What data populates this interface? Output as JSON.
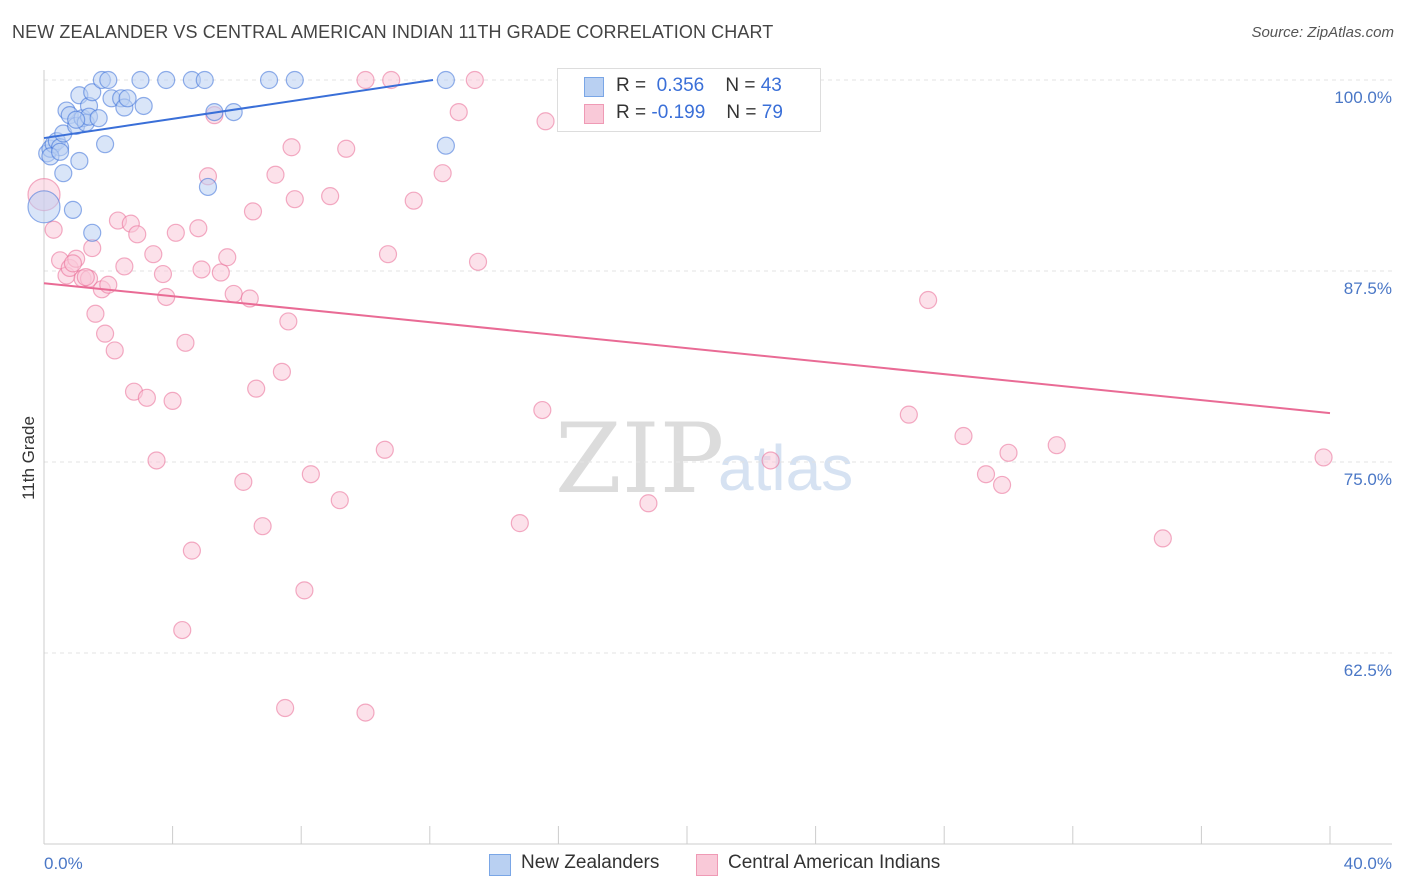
{
  "title": "NEW ZEALANDER VS CENTRAL AMERICAN INDIAN 11TH GRADE CORRELATION CHART",
  "source": "Source: ZipAtlas.com",
  "watermark": {
    "zip": "ZIP",
    "atlas": "atlas"
  },
  "legend": {
    "r_label": "R =",
    "n_label": "N =",
    "rows": [
      {
        "r": "0.356",
        "n": "43",
        "color": "#7aa6e6",
        "fill": "#b9d0f2"
      },
      {
        "r": "-0.199",
        "n": "79",
        "color": "#ef9ab5",
        "fill": "#f9c9d8"
      }
    ]
  },
  "bottom_legend": [
    "New Zealanders",
    "Central American Indians"
  ],
  "chart_data": {
    "type": "scatter",
    "title": "NEW ZEALANDER VS CENTRAL AMERICAN INDIAN 11TH GRADE CORRELATION CHART",
    "xlabel": "",
    "ylabel": "11th Grade",
    "xlim": [
      0,
      40
    ],
    "ylim": [
      50,
      100
    ],
    "x_tick_labels": [
      "0.0%",
      "40.0%"
    ],
    "y_ticks": [
      100,
      87.5,
      75,
      62.5
    ],
    "y_tick_labels": [
      "100.0%",
      "87.5%",
      "75.0%",
      "62.5%"
    ],
    "grid": true,
    "legend_position": "top-center",
    "series": [
      {
        "name": "New Zealanders",
        "color": "#3a6fd8",
        "marker_fill": "#b9d0f2",
        "trend": {
          "x": [
            0.0,
            12.1
          ],
          "y": [
            96.2,
            100.0
          ]
        },
        "points": [
          [
            0.0,
            91.7
          ],
          [
            0.1,
            95.2
          ],
          [
            0.2,
            95.5
          ],
          [
            0.3,
            95.8
          ],
          [
            0.4,
            96.0
          ],
          [
            0.5,
            95.6
          ],
          [
            0.6,
            96.5
          ],
          [
            0.6,
            93.9
          ],
          [
            0.7,
            98.0
          ],
          [
            0.8,
            97.7
          ],
          [
            0.9,
            91.5
          ],
          [
            1.0,
            97.0
          ],
          [
            1.1,
            94.7
          ],
          [
            1.1,
            99.0
          ],
          [
            1.2,
            97.5
          ],
          [
            1.3,
            97.2
          ],
          [
            1.4,
            98.3
          ],
          [
            1.4,
            97.6
          ],
          [
            1.5,
            90.0
          ],
          [
            1.5,
            99.2
          ],
          [
            1.7,
            97.5
          ],
          [
            1.9,
            95.8
          ],
          [
            1.8,
            100.0
          ],
          [
            2.0,
            100.0
          ],
          [
            2.1,
            98.8
          ],
          [
            2.4,
            98.8
          ],
          [
            2.5,
            98.2
          ],
          [
            2.6,
            98.8
          ],
          [
            3.1,
            98.3
          ],
          [
            3.0,
            100.0
          ],
          [
            3.8,
            100.0
          ],
          [
            4.6,
            100.0
          ],
          [
            5.0,
            100.0
          ],
          [
            5.1,
            93.0
          ],
          [
            5.3,
            97.9
          ],
          [
            5.9,
            97.9
          ],
          [
            7.0,
            100.0
          ],
          [
            7.8,
            100.0
          ],
          [
            12.5,
            100.0
          ],
          [
            12.5,
            95.7
          ],
          [
            0.2,
            95.0
          ],
          [
            0.5,
            95.3
          ],
          [
            1.0,
            97.4
          ]
        ]
      },
      {
        "name": "Central American Indians",
        "color": "#e96b95",
        "marker_fill": "#f9c9d8",
        "trend": {
          "x": [
            0.0,
            40.0
          ],
          "y": [
            86.7,
            78.2
          ]
        },
        "points": [
          [
            0.0,
            92.5
          ],
          [
            0.3,
            90.2
          ],
          [
            0.5,
            88.2
          ],
          [
            0.7,
            87.2
          ],
          [
            0.8,
            87.7
          ],
          [
            1.0,
            88.3
          ],
          [
            1.2,
            87.0
          ],
          [
            1.4,
            87.0
          ],
          [
            1.5,
            89.0
          ],
          [
            1.6,
            84.7
          ],
          [
            1.8,
            86.3
          ],
          [
            1.9,
            83.4
          ],
          [
            2.2,
            82.3
          ],
          [
            2.3,
            90.8
          ],
          [
            2.5,
            87.8
          ],
          [
            2.7,
            90.6
          ],
          [
            2.8,
            79.6
          ],
          [
            2.9,
            89.9
          ],
          [
            3.2,
            79.2
          ],
          [
            3.4,
            88.6
          ],
          [
            3.5,
            75.1
          ],
          [
            3.7,
            87.3
          ],
          [
            3.8,
            85.8
          ],
          [
            4.0,
            79.0
          ],
          [
            4.1,
            90.0
          ],
          [
            4.3,
            64.0
          ],
          [
            4.4,
            82.8
          ],
          [
            4.6,
            69.2
          ],
          [
            4.8,
            90.3
          ],
          [
            4.9,
            87.6
          ],
          [
            5.1,
            93.7
          ],
          [
            5.3,
            97.7
          ],
          [
            5.5,
            87.4
          ],
          [
            5.7,
            88.4
          ],
          [
            5.9,
            86.0
          ],
          [
            6.2,
            73.7
          ],
          [
            6.4,
            85.7
          ],
          [
            6.5,
            91.4
          ],
          [
            6.6,
            79.8
          ],
          [
            6.8,
            70.8
          ],
          [
            7.2,
            93.8
          ],
          [
            7.4,
            80.9
          ],
          [
            7.5,
            58.9
          ],
          [
            7.6,
            84.2
          ],
          [
            7.7,
            95.6
          ],
          [
            7.8,
            92.2
          ],
          [
            8.1,
            66.6
          ],
          [
            8.3,
            74.2
          ],
          [
            8.9,
            92.4
          ],
          [
            9.2,
            72.5
          ],
          [
            9.4,
            95.5
          ],
          [
            10.0,
            58.6
          ],
          [
            10.0,
            100.0
          ],
          [
            10.8,
            100.0
          ],
          [
            10.6,
            75.8
          ],
          [
            10.7,
            88.6
          ],
          [
            11.5,
            92.1
          ],
          [
            12.4,
            93.9
          ],
          [
            12.9,
            97.9
          ],
          [
            13.4,
            100.0
          ],
          [
            13.5,
            88.1
          ],
          [
            14.8,
            71.0
          ],
          [
            15.5,
            78.4
          ],
          [
            15.6,
            97.3
          ],
          [
            18.8,
            72.3
          ],
          [
            22.5,
            100.0
          ],
          [
            22.6,
            75.1
          ],
          [
            27.5,
            85.6
          ],
          [
            26.9,
            78.1
          ],
          [
            28.6,
            76.7
          ],
          [
            29.3,
            74.2
          ],
          [
            29.8,
            73.5
          ],
          [
            30.0,
            75.6
          ],
          [
            31.5,
            76.1
          ],
          [
            34.8,
            70.0
          ],
          [
            39.8,
            75.3
          ],
          [
            0.9,
            88.0
          ],
          [
            1.3,
            87.1
          ],
          [
            2.0,
            86.6
          ]
        ]
      }
    ]
  }
}
